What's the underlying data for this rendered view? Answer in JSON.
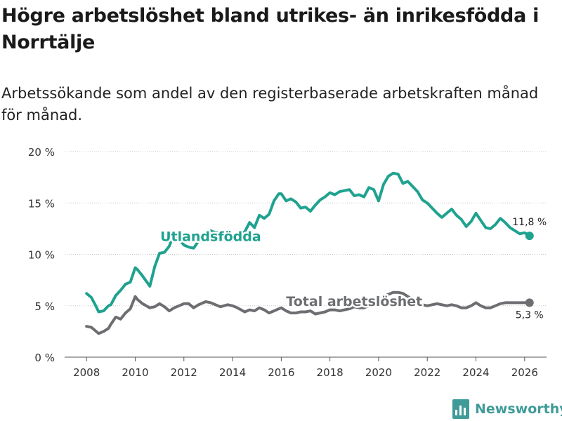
{
  "header": {
    "title": "Högre arbetslöshet bland utrikes- än inrikesfödda i Norrtälje",
    "subtitle": "Arbetssökande som andel av den registerbaserade arbetskraften månad för månad."
  },
  "chart_data": {
    "type": "line",
    "xlim": [
      2007.1,
      2026.9
    ],
    "ylim": [
      0,
      20
    ],
    "x_ticks": [
      2008,
      2010,
      2012,
      2014,
      2016,
      2018,
      2020,
      2022,
      2024,
      2026
    ],
    "x_tick_labels": [
      "2008",
      "2010",
      "2012",
      "2014",
      "2016",
      "2018",
      "2020",
      "2022",
      "2024",
      "2026"
    ],
    "y_ticks": [
      0,
      5,
      10,
      15,
      20
    ],
    "y_tick_labels": [
      "0 %",
      "5 %",
      "10 %",
      "15 %",
      "20 %"
    ],
    "grid": true,
    "series": [
      {
        "name": "Utlandsfödda",
        "color": "#1fa28f",
        "x": [
          2008.0,
          2008.2,
          2008.4,
          2008.5,
          2008.7,
          2008.9,
          2009.0,
          2009.2,
          2009.4,
          2009.6,
          2009.8,
          2010.0,
          2010.1,
          2010.3,
          2010.6,
          2010.8,
          2011.0,
          2011.2,
          2011.4,
          2011.6,
          2011.8,
          2012.0,
          2012.2,
          2012.4,
          2012.6,
          2012.9,
          2013.1,
          2013.3,
          2013.5,
          2013.8,
          2014.0,
          2014.2,
          2014.5,
          2014.7,
          2014.9,
          2015.1,
          2015.3,
          2015.5,
          2015.7,
          2015.9,
          2016.0,
          2016.2,
          2016.4,
          2016.6,
          2016.8,
          2017.0,
          2017.2,
          2017.4,
          2017.6,
          2017.8,
          2018.0,
          2018.2,
          2018.4,
          2018.6,
          2018.8,
          2019.0,
          2019.2,
          2019.4,
          2019.6,
          2019.8,
          2020.0,
          2020.2,
          2020.4,
          2020.6,
          2020.8,
          2021.0,
          2021.2,
          2021.4,
          2021.6,
          2021.8,
          2022.0,
          2022.2,
          2022.4,
          2022.6,
          2022.8,
          2023.0,
          2023.2,
          2023.4,
          2023.6,
          2023.8,
          2024.0,
          2024.2,
          2024.4,
          2024.6,
          2024.8,
          2025.0,
          2025.2,
          2025.4,
          2025.6,
          2025.8,
          2026.0,
          2026.2
        ],
        "values": [
          6.2,
          5.8,
          4.9,
          4.4,
          4.5,
          5.0,
          5.1,
          6.0,
          6.5,
          7.1,
          7.3,
          8.7,
          8.5,
          7.9,
          6.9,
          8.8,
          10.1,
          10.2,
          10.8,
          12.1,
          11.5,
          10.9,
          10.7,
          10.6,
          11.3,
          11.7,
          12.3,
          12.1,
          12.1,
          11.6,
          11.4,
          11.9,
          12.2,
          13.1,
          12.6,
          13.8,
          13.5,
          13.9,
          15.2,
          15.9,
          15.9,
          15.2,
          15.4,
          15.1,
          14.5,
          14.6,
          14.2,
          14.8,
          15.3,
          15.6,
          16.0,
          15.8,
          16.1,
          16.2,
          16.3,
          15.7,
          15.8,
          15.6,
          16.5,
          16.3,
          15.2,
          16.8,
          17.6,
          17.9,
          17.8,
          16.9,
          17.1,
          16.6,
          16.1,
          15.3,
          15.0,
          14.5,
          14.0,
          13.6,
          14.0,
          14.4,
          13.8,
          13.4,
          12.7,
          13.2,
          14.0,
          13.3,
          12.6,
          12.5,
          12.9,
          13.5,
          13.1,
          12.6,
          12.3,
          12.0,
          12.1,
          11.8
        ],
        "end_label": "11,8 %",
        "label": "Utlandsfödda"
      },
      {
        "name": "Total arbetslöshet",
        "color": "#6d6e71",
        "x": [
          2008.0,
          2008.2,
          2008.4,
          2008.5,
          2008.7,
          2008.9,
          2009.0,
          2009.2,
          2009.4,
          2009.6,
          2009.8,
          2010.0,
          2010.1,
          2010.3,
          2010.6,
          2010.8,
          2011.0,
          2011.2,
          2011.4,
          2011.6,
          2011.8,
          2012.0,
          2012.2,
          2012.4,
          2012.6,
          2012.9,
          2013.1,
          2013.3,
          2013.5,
          2013.8,
          2014.0,
          2014.2,
          2014.5,
          2014.7,
          2014.9,
          2015.1,
          2015.3,
          2015.5,
          2015.7,
          2015.9,
          2016.0,
          2016.2,
          2016.4,
          2016.6,
          2016.8,
          2017.0,
          2017.2,
          2017.4,
          2017.6,
          2017.8,
          2018.0,
          2018.2,
          2018.4,
          2018.6,
          2018.8,
          2019.0,
          2019.2,
          2019.4,
          2019.6,
          2019.8,
          2020.0,
          2020.2,
          2020.4,
          2020.6,
          2020.8,
          2021.0,
          2021.2,
          2021.4,
          2021.6,
          2021.8,
          2022.0,
          2022.2,
          2022.4,
          2022.6,
          2022.8,
          2023.0,
          2023.2,
          2023.4,
          2023.6,
          2023.8,
          2024.0,
          2024.2,
          2024.4,
          2024.6,
          2024.8,
          2025.0,
          2025.2,
          2025.4,
          2025.6,
          2025.8,
          2026.0,
          2026.2
        ],
        "values": [
          3.0,
          2.9,
          2.5,
          2.3,
          2.5,
          2.8,
          3.2,
          3.9,
          3.7,
          4.3,
          4.7,
          5.9,
          5.6,
          5.2,
          4.8,
          4.9,
          5.2,
          4.9,
          4.5,
          4.8,
          5.0,
          5.2,
          5.2,
          4.8,
          5.1,
          5.4,
          5.3,
          5.1,
          4.9,
          5.1,
          5.0,
          4.8,
          4.4,
          4.6,
          4.5,
          4.8,
          4.6,
          4.3,
          4.5,
          4.7,
          4.8,
          4.5,
          4.3,
          4.3,
          4.4,
          4.4,
          4.5,
          4.2,
          4.3,
          4.4,
          4.6,
          4.6,
          4.5,
          4.6,
          4.7,
          4.9,
          4.8,
          4.8,
          5.0,
          5.1,
          5.3,
          5.9,
          6.1,
          6.3,
          6.3,
          6.2,
          5.9,
          5.6,
          5.3,
          5.1,
          5.0,
          5.1,
          5.2,
          5.1,
          5.0,
          5.1,
          5.0,
          4.8,
          4.8,
          5.0,
          5.3,
          5.0,
          4.8,
          4.8,
          5.0,
          5.2,
          5.3,
          5.3,
          5.3,
          5.3,
          5.3,
          5.3
        ],
        "end_label": "5,3 %",
        "label": "Total arbetslöshet"
      }
    ]
  },
  "footer": {
    "brand": "Newsworthy"
  }
}
